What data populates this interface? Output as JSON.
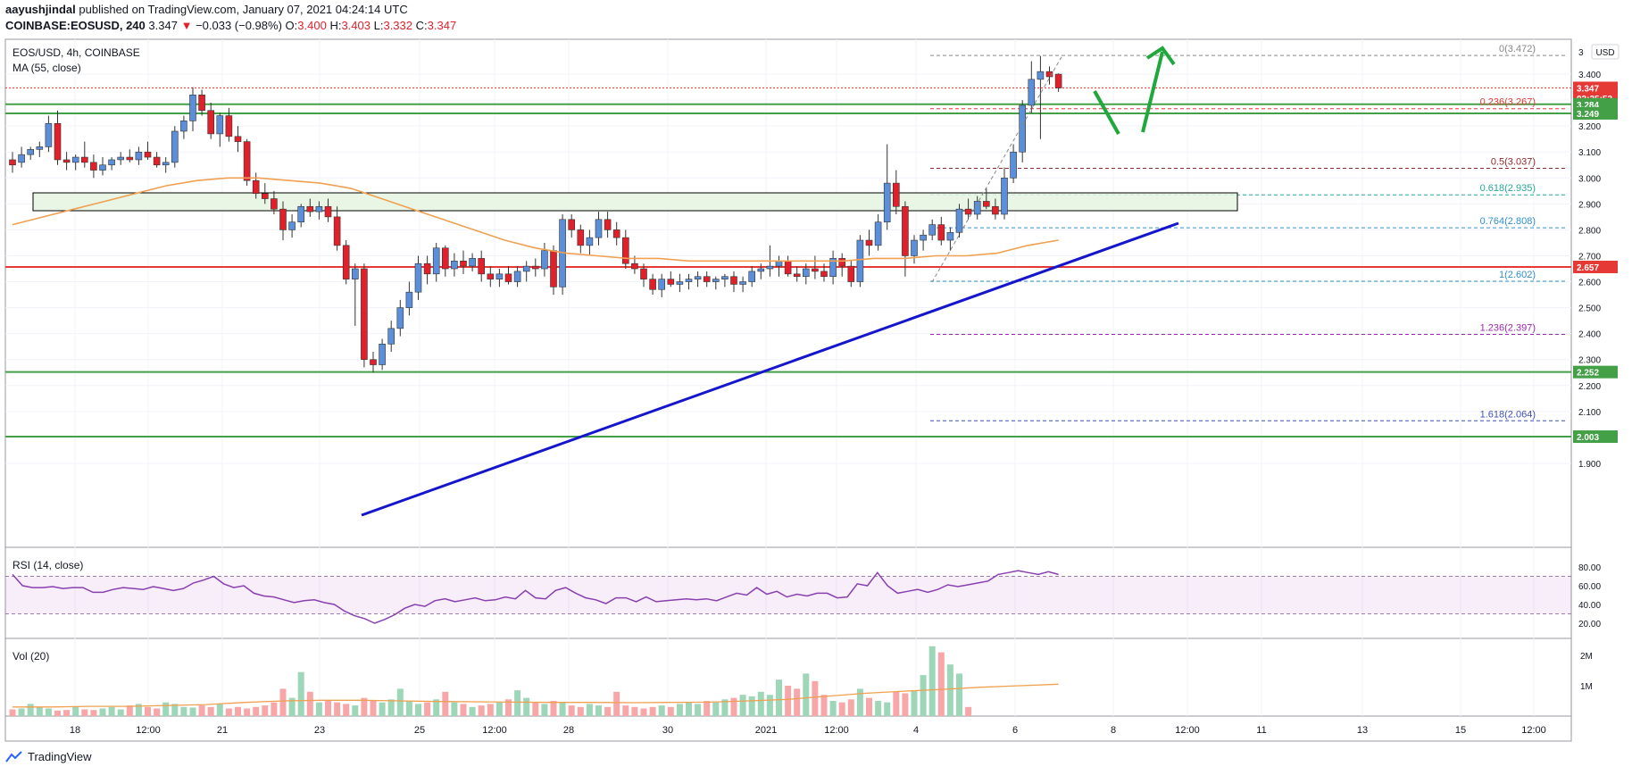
{
  "header": {
    "author": "aayushjindal",
    "published_text": "published on TradingView.com, January 07, 2021 04:24:14 UTC",
    "symbol_line": "COINBASE:EOSUSD, 240",
    "last": "3.347",
    "change": "−0.033 (−0.98%)",
    "o_label": "O:",
    "o": "3.400",
    "h_label": "H:",
    "h": "3.403",
    "l_label": "L:",
    "l": "3.332",
    "c_label": "C:",
    "c": "3.347"
  },
  "legend": {
    "title": "EOS/USD, 4h, COINBASE",
    "ma": "MA (55, close)",
    "rsi": "RSI (14, close)",
    "vol": "Vol (20)"
  },
  "currency": "USD",
  "footer": {
    "brand": "TradingView"
  },
  "colors": {
    "up": "#5b8fd9",
    "down": "#e0212b",
    "ma": "#f0a050",
    "trendline": "#1515cc",
    "support_green": "#43a047",
    "resistance_red": "#e53935",
    "arrow": "#1fa83c",
    "rsi": "#8a3fb0",
    "vol_up": "#9ed6b8",
    "vol_down": "#f7a7a7"
  },
  "chart_data": {
    "type": "candlestick",
    "price_axis": {
      "min": 1.9,
      "max": 3.5,
      "ticks": [
        "3.400",
        "3.300",
        "3.200",
        "3.100",
        "3.000",
        "2.900",
        "2.800",
        "2.700",
        "2.600",
        "2.500",
        "2.400",
        "2.300",
        "2.200",
        "2.100",
        "2.000",
        "1.900"
      ],
      "top_partial_label": "3"
    },
    "time_axis": {
      "labels": [
        "18",
        "12:00",
        "21",
        "23",
        "25",
        "12:00",
        "28",
        "30",
        "2021",
        "12:00",
        "4",
        "6",
        "8",
        "12:00",
        "11",
        "13",
        "15",
        "12:00"
      ]
    },
    "series_ohlc": [
      [
        3.07,
        3.1,
        3.02,
        3.05
      ],
      [
        3.06,
        3.12,
        3.04,
        3.09
      ],
      [
        3.09,
        3.12,
        3.07,
        3.11
      ],
      [
        3.11,
        3.14,
        3.08,
        3.12
      ],
      [
        3.12,
        3.24,
        3.1,
        3.21
      ],
      [
        3.21,
        3.26,
        3.05,
        3.07
      ],
      [
        3.07,
        3.1,
        3.03,
        3.06
      ],
      [
        3.06,
        3.09,
        3.03,
        3.08
      ],
      [
        3.08,
        3.14,
        3.04,
        3.06
      ],
      [
        3.06,
        3.09,
        3.0,
        3.03
      ],
      [
        3.03,
        3.08,
        3.01,
        3.05
      ],
      [
        3.05,
        3.08,
        3.03,
        3.07
      ],
      [
        3.07,
        3.1,
        3.05,
        3.08
      ],
      [
        3.08,
        3.11,
        3.06,
        3.07
      ],
      [
        3.07,
        3.12,
        3.05,
        3.1
      ],
      [
        3.1,
        3.14,
        3.07,
        3.08
      ],
      [
        3.08,
        3.1,
        3.04,
        3.05
      ],
      [
        3.05,
        3.08,
        3.02,
        3.06
      ],
      [
        3.06,
        3.2,
        3.04,
        3.18
      ],
      [
        3.18,
        3.24,
        3.15,
        3.22
      ],
      [
        3.22,
        3.35,
        3.18,
        3.32
      ],
      [
        3.32,
        3.34,
        3.24,
        3.26
      ],
      [
        3.26,
        3.29,
        3.15,
        3.17
      ],
      [
        3.17,
        3.25,
        3.12,
        3.24
      ],
      [
        3.24,
        3.27,
        3.14,
        3.16
      ],
      [
        3.16,
        3.2,
        3.1,
        3.14
      ],
      [
        3.14,
        3.15,
        2.97,
        2.99
      ],
      [
        2.99,
        3.02,
        2.92,
        2.94
      ],
      [
        2.94,
        2.98,
        2.9,
        2.92
      ],
      [
        2.92,
        2.95,
        2.86,
        2.88
      ],
      [
        2.88,
        2.91,
        2.76,
        2.8
      ],
      [
        2.8,
        2.86,
        2.77,
        2.83
      ],
      [
        2.83,
        2.9,
        2.81,
        2.89
      ],
      [
        2.89,
        2.92,
        2.85,
        2.87
      ],
      [
        2.87,
        2.91,
        2.84,
        2.89
      ],
      [
        2.89,
        2.92,
        2.83,
        2.85
      ],
      [
        2.85,
        2.89,
        2.72,
        2.74
      ],
      [
        2.74,
        2.76,
        2.59,
        2.61
      ],
      [
        2.61,
        2.67,
        2.43,
        2.65
      ],
      [
        2.65,
        2.67,
        2.27,
        2.3
      ],
      [
        2.3,
        2.33,
        2.25,
        2.28
      ],
      [
        2.28,
        2.38,
        2.26,
        2.36
      ],
      [
        2.36,
        2.45,
        2.33,
        2.42
      ],
      [
        2.42,
        2.53,
        2.39,
        2.5
      ],
      [
        2.5,
        2.6,
        2.47,
        2.56
      ],
      [
        2.56,
        2.7,
        2.53,
        2.67
      ],
      [
        2.67,
        2.7,
        2.59,
        2.63
      ],
      [
        2.63,
        2.75,
        2.6,
        2.73
      ],
      [
        2.73,
        2.74,
        2.62,
        2.65
      ],
      [
        2.65,
        2.71,
        2.62,
        2.68
      ],
      [
        2.68,
        2.72,
        2.63,
        2.66
      ],
      [
        2.66,
        2.71,
        2.64,
        2.69
      ],
      [
        2.69,
        2.72,
        2.6,
        2.63
      ],
      [
        2.63,
        2.66,
        2.58,
        2.61
      ],
      [
        2.61,
        2.65,
        2.58,
        2.63
      ],
      [
        2.63,
        2.66,
        2.59,
        2.6
      ],
      [
        2.6,
        2.66,
        2.58,
        2.64
      ],
      [
        2.64,
        2.68,
        2.6,
        2.66
      ],
      [
        2.66,
        2.69,
        2.62,
        2.65
      ],
      [
        2.65,
        2.75,
        2.62,
        2.72
      ],
      [
        2.72,
        2.74,
        2.55,
        2.58
      ],
      [
        2.58,
        2.86,
        2.55,
        2.84
      ],
      [
        2.84,
        2.86,
        2.77,
        2.8
      ],
      [
        2.8,
        2.82,
        2.71,
        2.74
      ],
      [
        2.74,
        2.8,
        2.7,
        2.77
      ],
      [
        2.77,
        2.87,
        2.74,
        2.84
      ],
      [
        2.84,
        2.87,
        2.77,
        2.8
      ],
      [
        2.8,
        2.83,
        2.74,
        2.77
      ],
      [
        2.77,
        2.8,
        2.65,
        2.67
      ],
      [
        2.67,
        2.7,
        2.63,
        2.65
      ],
      [
        2.65,
        2.67,
        2.58,
        2.61
      ],
      [
        2.61,
        2.63,
        2.55,
        2.57
      ],
      [
        2.57,
        2.63,
        2.54,
        2.61
      ],
      [
        2.61,
        2.64,
        2.58,
        2.59
      ],
      [
        2.59,
        2.63,
        2.56,
        2.6
      ],
      [
        2.6,
        2.63,
        2.57,
        2.61
      ],
      [
        2.61,
        2.64,
        2.58,
        2.62
      ],
      [
        2.62,
        2.64,
        2.58,
        2.6
      ],
      [
        2.6,
        2.62,
        2.57,
        2.61
      ],
      [
        2.61,
        2.63,
        2.58,
        2.62
      ],
      [
        2.62,
        2.64,
        2.56,
        2.59
      ],
      [
        2.59,
        2.62,
        2.56,
        2.6
      ],
      [
        2.6,
        2.66,
        2.58,
        2.64
      ],
      [
        2.64,
        2.67,
        2.61,
        2.65
      ],
      [
        2.65,
        2.74,
        2.62,
        2.66
      ],
      [
        2.66,
        2.7,
        2.62,
        2.68
      ],
      [
        2.68,
        2.7,
        2.62,
        2.63
      ],
      [
        2.63,
        2.66,
        2.6,
        2.62
      ],
      [
        2.62,
        2.67,
        2.59,
        2.65
      ],
      [
        2.65,
        2.7,
        2.61,
        2.64
      ],
      [
        2.64,
        2.67,
        2.6,
        2.62
      ],
      [
        2.62,
        2.72,
        2.59,
        2.69
      ],
      [
        2.69,
        2.71,
        2.62,
        2.66
      ],
      [
        2.66,
        2.68,
        2.58,
        2.6
      ],
      [
        2.6,
        2.78,
        2.58,
        2.76
      ],
      [
        2.76,
        2.8,
        2.7,
        2.74
      ],
      [
        2.74,
        2.86,
        2.72,
        2.83
      ],
      [
        2.83,
        3.13,
        2.8,
        2.98
      ],
      [
        2.98,
        3.03,
        2.86,
        2.89
      ],
      [
        2.89,
        2.91,
        2.62,
        2.7
      ],
      [
        2.7,
        2.78,
        2.67,
        2.76
      ],
      [
        2.76,
        2.8,
        2.72,
        2.78
      ],
      [
        2.78,
        2.84,
        2.76,
        2.82
      ],
      [
        2.82,
        2.85,
        2.74,
        2.76
      ],
      [
        2.76,
        2.81,
        2.72,
        2.79
      ],
      [
        2.79,
        2.9,
        2.77,
        2.88
      ],
      [
        2.88,
        2.92,
        2.84,
        2.86
      ],
      [
        2.86,
        2.93,
        2.84,
        2.91
      ],
      [
        2.91,
        2.96,
        2.88,
        2.89
      ],
      [
        2.89,
        2.92,
        2.84,
        2.86
      ],
      [
        2.86,
        3.04,
        2.84,
        3.0
      ],
      [
        3.0,
        3.13,
        2.98,
        3.1
      ],
      [
        3.1,
        3.3,
        3.06,
        3.28
      ],
      [
        3.28,
        3.45,
        3.25,
        3.38
      ],
      [
        3.38,
        3.47,
        3.15,
        3.41
      ],
      [
        3.41,
        3.43,
        3.36,
        3.39
      ],
      [
        3.4,
        3.403,
        3.332,
        3.347
      ]
    ],
    "ma": {
      "name": "MA (55, close)",
      "values": [
        2.82,
        2.85,
        2.88,
        2.91,
        2.94,
        2.97,
        2.99,
        3.0,
        3.0,
        2.99,
        2.98,
        2.96,
        2.92,
        2.88,
        2.84,
        2.8,
        2.76,
        2.73,
        2.71,
        2.7,
        2.69,
        2.69,
        2.68,
        2.68,
        2.68,
        2.68,
        2.68,
        2.68,
        2.69,
        2.69,
        2.7,
        2.7,
        2.71,
        2.74,
        2.76
      ],
      "x_span_note": "approx. first candle to last"
    },
    "levels": [
      {
        "price": 3.347,
        "label": "3.347",
        "type": "last_price"
      },
      {
        "price": 3.307,
        "label": "03:35:53",
        "type": "countdown"
      },
      {
        "price": 3.284,
        "label": "3.284",
        "type": "support"
      },
      {
        "price": 3.249,
        "label": "3.249",
        "type": "support"
      },
      {
        "price": 2.657,
        "label": "2.657",
        "type": "red_line"
      },
      {
        "price": 2.252,
        "label": "2.252",
        "type": "support"
      },
      {
        "price": 2.003,
        "label": "2.003",
        "type": "support"
      }
    ],
    "fib": [
      {
        "ratio": "0",
        "price": 3.472,
        "label": "0(3.472)",
        "color": "#888888"
      },
      {
        "ratio": "0.236",
        "price": 3.267,
        "label": "0.236(3.267)",
        "color": "#e53935"
      },
      {
        "ratio": "0.5",
        "price": 3.037,
        "label": "0.5(3.037)",
        "color": "#8d2a2a"
      },
      {
        "ratio": "0.618",
        "price": 2.935,
        "label": "0.618(2.935)",
        "color": "#26a69a"
      },
      {
        "ratio": "0.764",
        "price": 2.808,
        "label": "0.764(2.808)",
        "color": "#3090c7"
      },
      {
        "ratio": "1",
        "price": 2.602,
        "label": "1(2.602)",
        "color": "#3090c7"
      },
      {
        "ratio": "1.236",
        "price": 2.397,
        "label": "1.236(2.397)",
        "color": "#9c27b0"
      },
      {
        "ratio": "1.618",
        "price": 2.064,
        "label": "1.618(2.064)",
        "color": "#3f51b5"
      }
    ],
    "rsi": {
      "ticks": [
        "80.00",
        "60.00",
        "40.00",
        "20.00"
      ],
      "bands": [
        70,
        30
      ],
      "values": [
        72,
        60,
        58,
        58,
        59,
        57,
        58,
        58,
        53,
        53,
        56,
        58,
        57,
        56,
        59,
        57,
        55,
        57,
        63,
        66,
        70,
        62,
        58,
        60,
        52,
        49,
        48,
        45,
        42,
        44,
        45,
        42,
        40,
        33,
        28,
        25,
        20,
        24,
        29,
        36,
        40,
        38,
        44,
        46,
        43,
        45,
        47,
        44,
        45,
        48,
        46,
        55,
        47,
        46,
        55,
        58,
        52,
        47,
        45,
        41,
        47,
        47,
        43,
        48,
        43,
        44,
        45,
        46,
        45,
        46,
        44,
        48,
        52,
        50,
        58,
        51,
        54,
        48,
        51,
        49,
        52,
        52,
        47,
        48,
        62,
        60,
        74,
        60,
        52,
        54,
        56,
        53,
        56,
        61,
        59,
        61,
        63,
        65,
        72,
        74,
        76,
        74,
        72,
        75,
        72
      ]
    },
    "volume": {
      "ticks": [
        "2M",
        "1M"
      ],
      "values_m": [
        0.22,
        0.25,
        0.4,
        0.3,
        0.25,
        0.18,
        0.2,
        0.3,
        0.22,
        0.2,
        0.25,
        0.3,
        0.22,
        0.35,
        0.4,
        0.3,
        0.25,
        0.45,
        0.4,
        0.3,
        0.28,
        0.35,
        0.3,
        0.4,
        0.25,
        0.3,
        0.25,
        0.3,
        0.35,
        0.45,
        0.9,
        0.6,
        1.45,
        0.8,
        0.45,
        0.5,
        0.45,
        0.4,
        0.35,
        0.6,
        0.5,
        0.45,
        0.55,
        0.9,
        0.5,
        0.4,
        0.45,
        0.55,
        0.8,
        0.45,
        0.4,
        0.3,
        0.35,
        0.4,
        0.45,
        0.55,
        0.85,
        0.6,
        0.45,
        0.4,
        0.5,
        0.45,
        0.35,
        0.3,
        0.4,
        0.35,
        0.3,
        0.8,
        0.35,
        0.3,
        0.25,
        0.3,
        0.35,
        0.3,
        0.4,
        0.45,
        0.4,
        0.5,
        0.45,
        0.55,
        0.6,
        0.7,
        0.65,
        0.8,
        0.7,
        1.2,
        1.0,
        0.9,
        1.4,
        1.15,
        0.7,
        0.5,
        0.45,
        0.55,
        0.9,
        0.6,
        0.5,
        0.45,
        0.8,
        0.75,
        0.85,
        1.35,
        2.3,
        2.1,
        1.7,
        1.4,
        0.3
      ],
      "ma_values_m": [
        0.3,
        0.3,
        0.32,
        0.32,
        0.35,
        0.38,
        0.45,
        0.5,
        0.52,
        0.52,
        0.5,
        0.48,
        0.47,
        0.46,
        0.45,
        0.45,
        0.44,
        0.45,
        0.46,
        0.5,
        0.55,
        0.65,
        0.75,
        0.82,
        0.88,
        0.95,
        1.0,
        1.05
      ]
    }
  }
}
